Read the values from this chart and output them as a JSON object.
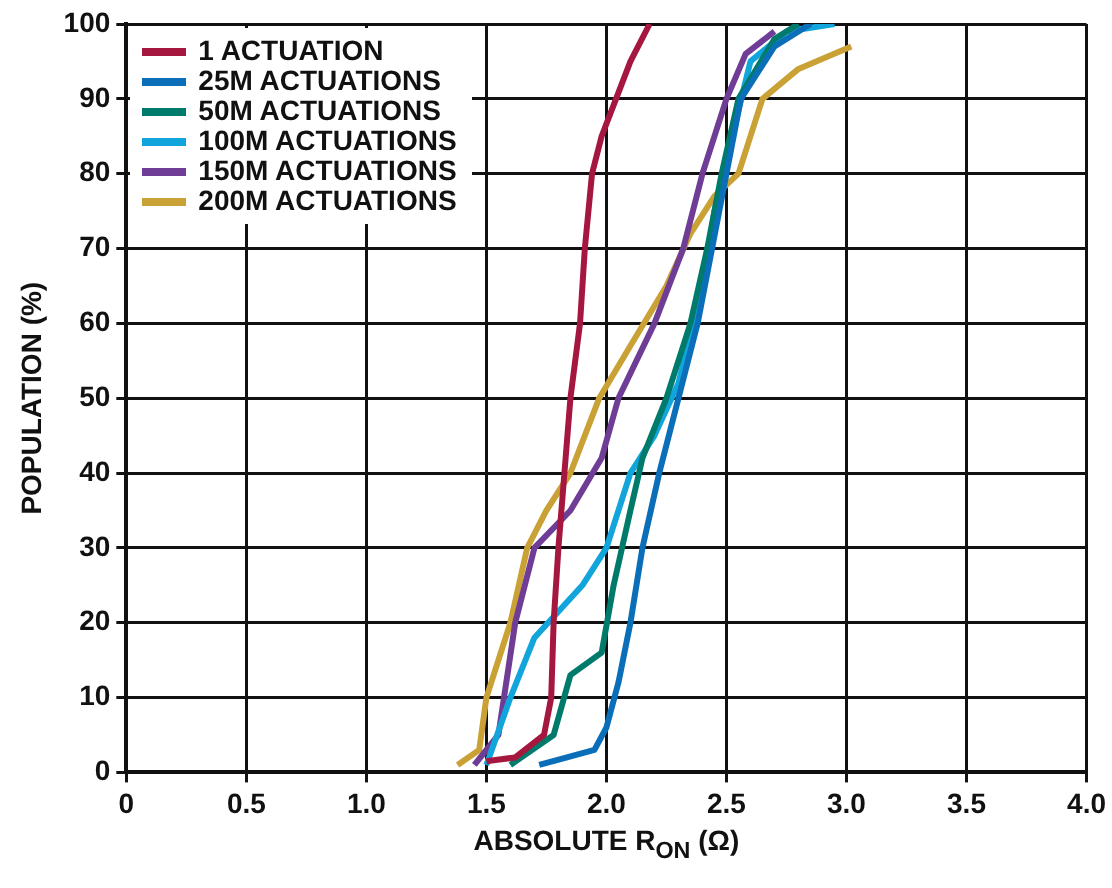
{
  "chart_data": {
    "type": "line",
    "xlabel": "ABSOLUTE R$_{ON}$ (Ω)",
    "ylabel": "POPULATION (%)",
    "xlim": [
      0,
      4
    ],
    "xticks": [
      0,
      0.5,
      {
        "value": 1,
        "label": "1.0"
      },
      1.5,
      {
        "value": 2,
        "label": "2.0"
      },
      2.5,
      {
        "value": 3,
        "label": "3.0"
      },
      3.5,
      {
        "value": 4,
        "label": "4.0"
      }
    ],
    "ylim": [
      0,
      100
    ],
    "yticks": [
      0,
      10,
      20,
      30,
      40,
      50,
      60,
      70,
      80,
      90,
      100
    ],
    "grid": true,
    "legend": "top left",
    "marker": "none",
    "line_style": "solid",
    "series": [
      {
        "name": "1 ACTUATION",
        "color": "#a6173f",
        "x": [
          1.5,
          1.62,
          1.74,
          1.77,
          1.78,
          1.8,
          1.85,
          1.89,
          1.91,
          1.94,
          1.98,
          2.04,
          2.1,
          2.18
        ],
        "values": [
          1.5,
          2,
          5,
          10,
          20,
          30,
          50,
          60,
          70,
          80,
          85,
          90,
          95,
          100
        ]
      },
      {
        "name": "25M ACTUATIONS",
        "color": "#0a6fb8",
        "x": [
          1.72,
          1.95,
          2.0,
          2.05,
          2.1,
          2.15,
          2.22,
          2.3,
          2.38,
          2.44,
          2.5,
          2.56,
          2.7,
          2.85
        ],
        "values": [
          1,
          3,
          6,
          12,
          20,
          30,
          40,
          50,
          60,
          70,
          80,
          90,
          97,
          100
        ]
      },
      {
        "name": "50M ACTUATIONS",
        "color": "#007a6b",
        "x": [
          1.6,
          1.78,
          1.85,
          1.98,
          2.03,
          2.1,
          2.15,
          2.25,
          2.35,
          2.42,
          2.48,
          2.55,
          2.7,
          2.8
        ],
        "values": [
          1,
          5,
          13,
          16,
          25,
          35,
          42,
          50,
          60,
          70,
          80,
          90,
          98,
          100
        ]
      },
      {
        "name": "100M ACTUATIONS",
        "color": "#12a5dc",
        "x": [
          1.5,
          1.6,
          1.7,
          1.9,
          2.0,
          2.1,
          2.2,
          2.3,
          2.4,
          2.45,
          2.5,
          2.6,
          2.75,
          2.95
        ],
        "values": [
          1,
          10,
          18,
          25,
          30,
          40,
          45,
          52,
          65,
          75,
          82,
          95,
          99,
          100
        ]
      },
      {
        "name": "150M ACTUATIONS",
        "color": "#6f3d96",
        "x": [
          1.45,
          1.55,
          1.62,
          1.7,
          1.85,
          1.98,
          2.05,
          2.2,
          2.32,
          2.4,
          2.5,
          2.58,
          2.7
        ],
        "values": [
          1,
          5,
          20,
          30,
          35,
          42,
          50,
          60,
          70,
          80,
          90,
          96,
          99
        ]
      },
      {
        "name": "200M ACTUATIONS",
        "color": "#c9a135",
        "x": [
          1.38,
          1.47,
          1.5,
          1.6,
          1.67,
          1.75,
          1.85,
          1.97,
          2.1,
          2.25,
          2.35,
          2.45,
          2.55,
          2.65,
          2.8,
          3.02
        ],
        "values": [
          1,
          3,
          10,
          20,
          30,
          35,
          40,
          50,
          57,
          65,
          72,
          77,
          80,
          90,
          94,
          97
        ]
      }
    ]
  }
}
